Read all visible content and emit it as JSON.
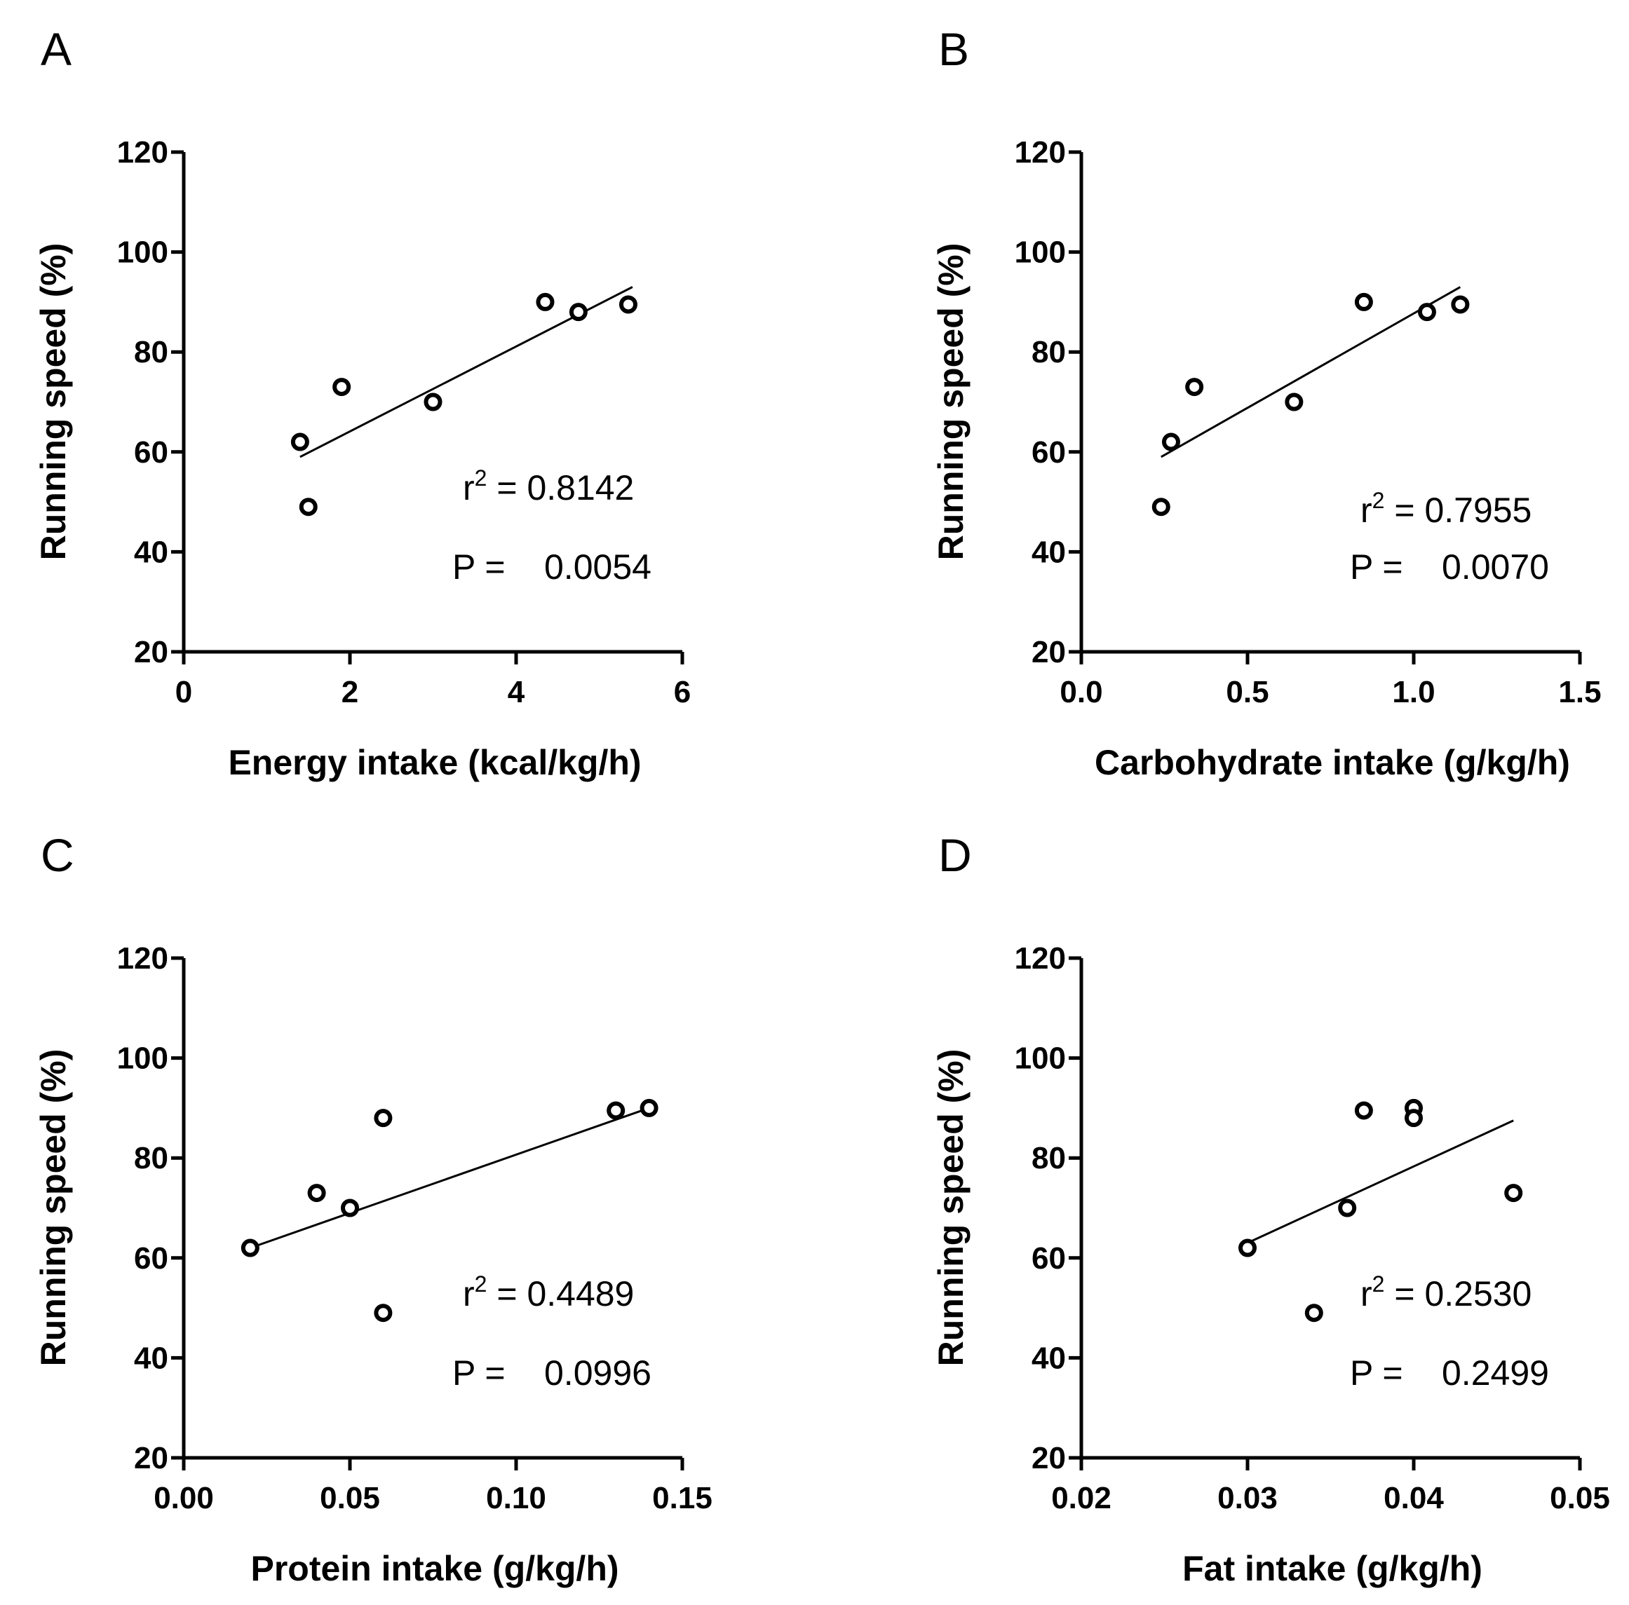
{
  "figure": {
    "panels": [
      {
        "letter": "A",
        "xlabel": "Energy intake (kcal/kg/h)",
        "ylabel": "Running speed (%)",
        "r2_text": "0.8142",
        "p_text": "0.0054"
      },
      {
        "letter": "B",
        "xlabel": "Carbohydrate intake (g/kg/h)",
        "ylabel": "Running speed (%)",
        "r2_text": "0.7955",
        "p_text": "0.0070"
      },
      {
        "letter": "C",
        "xlabel": "Protein intake (g/kg/h)",
        "ylabel": "Running speed (%)",
        "r2_text": "0.4489",
        "p_text": "0.0996"
      },
      {
        "letter": "D",
        "xlabel": "Fat intake (g/kg/h)",
        "ylabel": "Running speed (%)",
        "r2_text": "0.2530",
        "p_text": "0.2499"
      }
    ],
    "r2_prefix": "r",
    "r2_sup": "2",
    "r2_eq": " = ",
    "p_prefix": "P = "
  },
  "chart_data": [
    {
      "type": "scatter",
      "panel": "A",
      "xlabel": "Energy intake (kcal/kg/h)",
      "ylabel": "Running speed (%)",
      "xlim": [
        0,
        6
      ],
      "ylim": [
        20,
        120
      ],
      "xticks": [
        0,
        2,
        4,
        6
      ],
      "xtick_labels": [
        "0",
        "2",
        "4",
        "6"
      ],
      "yticks": [
        20,
        40,
        60,
        80,
        100,
        120
      ],
      "ytick_labels": [
        "20",
        "40",
        "60",
        "80",
        "100",
        "120"
      ],
      "points": [
        [
          1.4,
          62
        ],
        [
          1.5,
          49
        ],
        [
          1.9,
          73
        ],
        [
          3.0,
          70
        ],
        [
          4.35,
          90
        ],
        [
          4.75,
          88
        ],
        [
          5.35,
          89.5
        ]
      ],
      "fit_line": [
        [
          1.4,
          59
        ],
        [
          5.4,
          93
        ]
      ],
      "r2": 0.8142,
      "p": 0.0054,
      "grid": false
    },
    {
      "type": "scatter",
      "panel": "B",
      "xlabel": "Carbohydrate intake (g/kg/h)",
      "ylabel": "Running speed (%)",
      "xlim": [
        0,
        1.5
      ],
      "ylim": [
        20,
        120
      ],
      "xticks": [
        0,
        0.5,
        1.0,
        1.5
      ],
      "xtick_labels": [
        "0.0",
        "0.5",
        "1.0",
        "1.5"
      ],
      "yticks": [
        20,
        40,
        60,
        80,
        100,
        120
      ],
      "ytick_labels": [
        "20",
        "40",
        "60",
        "80",
        "100",
        "120"
      ],
      "points": [
        [
          0.24,
          49
        ],
        [
          0.27,
          62
        ],
        [
          0.34,
          73
        ],
        [
          0.64,
          70
        ],
        [
          0.85,
          90
        ],
        [
          1.04,
          88
        ],
        [
          1.14,
          89.5
        ]
      ],
      "fit_line": [
        [
          0.24,
          59
        ],
        [
          1.14,
          93
        ]
      ],
      "r2": 0.7955,
      "p": 0.007,
      "grid": false
    },
    {
      "type": "scatter",
      "panel": "C",
      "xlabel": "Protein intake (g/kg/h)",
      "ylabel": "Running speed (%)",
      "xlim": [
        0,
        0.15
      ],
      "ylim": [
        20,
        120
      ],
      "xticks": [
        0,
        0.05,
        0.1,
        0.15
      ],
      "xtick_labels": [
        "0.00",
        "0.05",
        "0.10",
        "0.15"
      ],
      "yticks": [
        20,
        40,
        60,
        80,
        100,
        120
      ],
      "ytick_labels": [
        "20",
        "40",
        "60",
        "80",
        "100",
        "120"
      ],
      "points": [
        [
          0.02,
          62
        ],
        [
          0.04,
          73
        ],
        [
          0.05,
          70
        ],
        [
          0.06,
          88
        ],
        [
          0.06,
          49
        ],
        [
          0.13,
          89.5
        ],
        [
          0.14,
          90
        ]
      ],
      "fit_line": [
        [
          0.02,
          62
        ],
        [
          0.14,
          90
        ]
      ],
      "r2": 0.4489,
      "p": 0.0996,
      "grid": false
    },
    {
      "type": "scatter",
      "panel": "D",
      "xlabel": "Fat intake (g/kg/h)",
      "ylabel": "Running speed (%)",
      "xlim": [
        0.02,
        0.05
      ],
      "ylim": [
        20,
        120
      ],
      "xticks": [
        0.02,
        0.03,
        0.04,
        0.05
      ],
      "xtick_labels": [
        "0.02",
        "0.03",
        "0.04",
        "0.05"
      ],
      "yticks": [
        20,
        40,
        60,
        80,
        100,
        120
      ],
      "ytick_labels": [
        "20",
        "40",
        "60",
        "80",
        "100",
        "120"
      ],
      "points": [
        [
          0.03,
          62
        ],
        [
          0.034,
          49
        ],
        [
          0.036,
          70
        ],
        [
          0.037,
          89.5
        ],
        [
          0.04,
          90
        ],
        [
          0.04,
          88
        ],
        [
          0.046,
          73
        ]
      ],
      "fit_line": [
        [
          0.03,
          63
        ],
        [
          0.046,
          87.5
        ]
      ],
      "r2": 0.253,
      "p": 0.2499,
      "grid": false
    }
  ]
}
